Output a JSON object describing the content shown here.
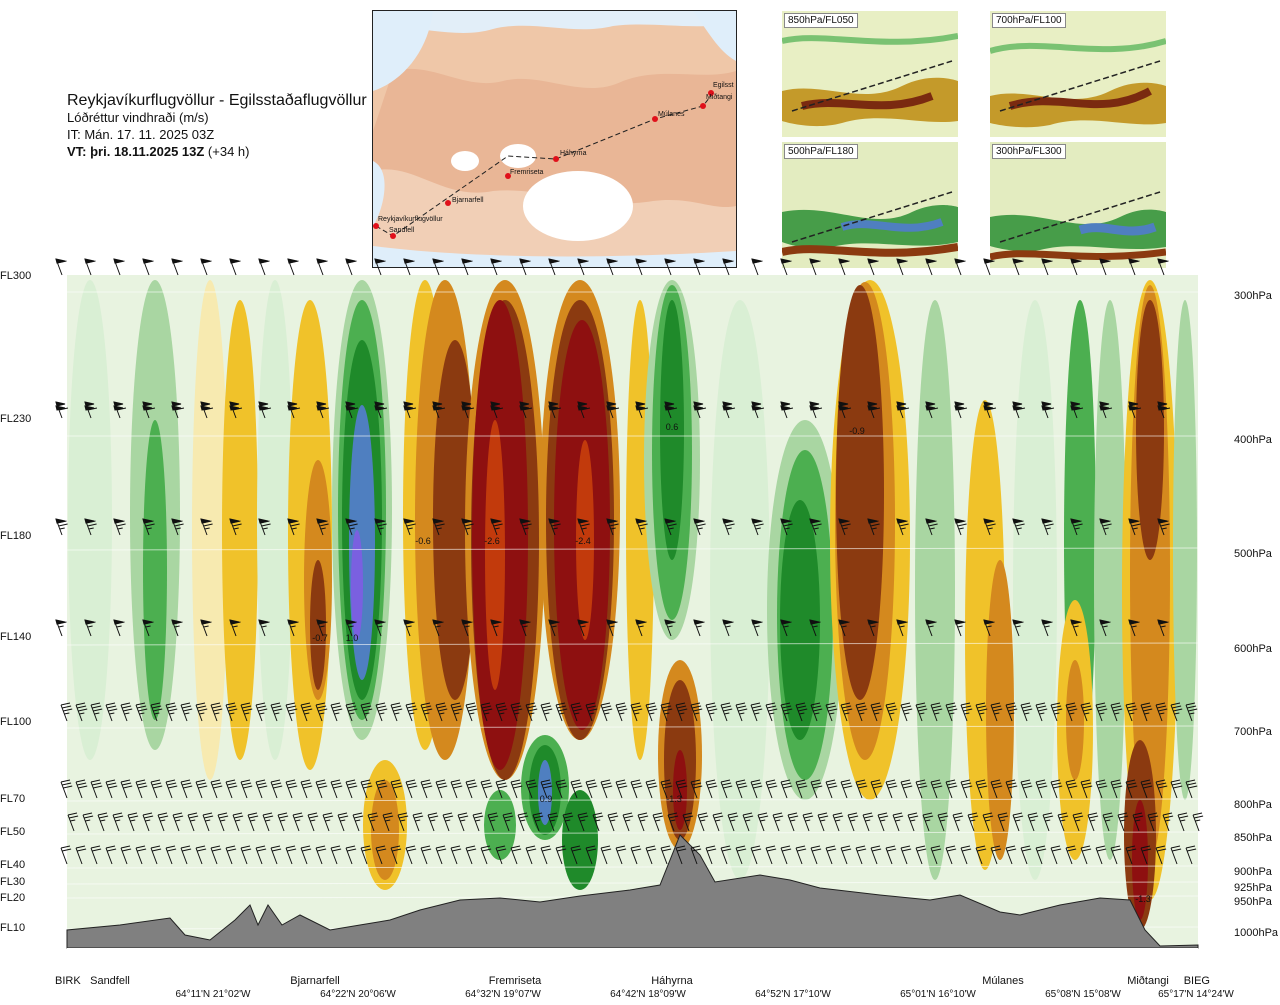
{
  "header": {
    "route": "Reykjavíkurflugvöllur - Egilsstaðaflugvöllur",
    "variable": "Lóðréttur vindhraði (m/s)",
    "it": "IT: Mán. 17. 11. 2025 03Z",
    "vt_bold": "VT: þri. 18.11.2025 13Z",
    "vt_rest": " (+34 h)"
  },
  "map": {
    "waypoints": [
      "Reykjavíkurflugvöllur",
      "Sandfell",
      "Bjarnarfell",
      "Fremriseta",
      "Háhyrna",
      "Múlanes",
      "Miðtangi",
      "Egilsst"
    ]
  },
  "thumbnails": [
    {
      "label": "850hPa/FL050"
    },
    {
      "label": "700hPa/FL100"
    },
    {
      "label": "500hPa/FL180"
    },
    {
      "label": "300hPa/FL300"
    }
  ],
  "chart_data": {
    "type": "heatmap",
    "title": "Lóðréttur vindhraði (m/s)",
    "levels": [
      {
        "fl": "FL300",
        "hpa": "300hPa"
      },
      {
        "fl": "FL230",
        "hpa": "400hPa"
      },
      {
        "fl": "FL180",
        "hpa": "500hPa"
      },
      {
        "fl": "FL140",
        "hpa": "600hPa"
      },
      {
        "fl": "FL100",
        "hpa": "700hPa"
      },
      {
        "fl": "FL70",
        "hpa": "800hPa"
      },
      {
        "fl": "FL50",
        "hpa": "850hPa"
      },
      {
        "fl": "FL40",
        "hpa": "900hPa"
      },
      {
        "fl": "FL30",
        "hpa": "925hPa"
      },
      {
        "fl": "FL20",
        "hpa": "950hPa"
      },
      {
        "fl": "FL10",
        "hpa": "1000hPa"
      }
    ],
    "stations": [
      "BIRK",
      "Sandfell",
      "Bjarnarfell",
      "Fremriseta",
      "Háhyrna",
      "Múlanes",
      "Miðtangi",
      "BIEG"
    ],
    "coordinates": [
      "64°11'N 21°02'W",
      "64°22'N 20°06'W",
      "64°32'N 19°07'W",
      "64°42'N 18°09'W",
      "64°52'N 17°10'W",
      "65°01'N 16°10'W",
      "65°08'N 15°08'W",
      "65°17'N 14°24'W"
    ],
    "value_labels": [
      "0.6",
      "-0.9",
      "-0.6",
      "-2.6",
      "-2.4",
      "-0.7",
      "1.0",
      "0.9",
      "-1.3",
      "-1.3"
    ],
    "color_scale": {
      "down_strong": "#8e1010",
      "down": "#c23a0c",
      "down_mod": "#8b3a10",
      "down_weak": "#d4891e",
      "down_light": "#f0c22a",
      "down_faint": "#f7eab0",
      "up_faint": "#d9efd4",
      "up_light": "#a9d6a2",
      "up": "#4caf50",
      "up_mod": "#1f8a2a",
      "up_strong": "#4f7fc0",
      "up_max": "#7a60e0"
    },
    "terrain_color": "#808080"
  }
}
